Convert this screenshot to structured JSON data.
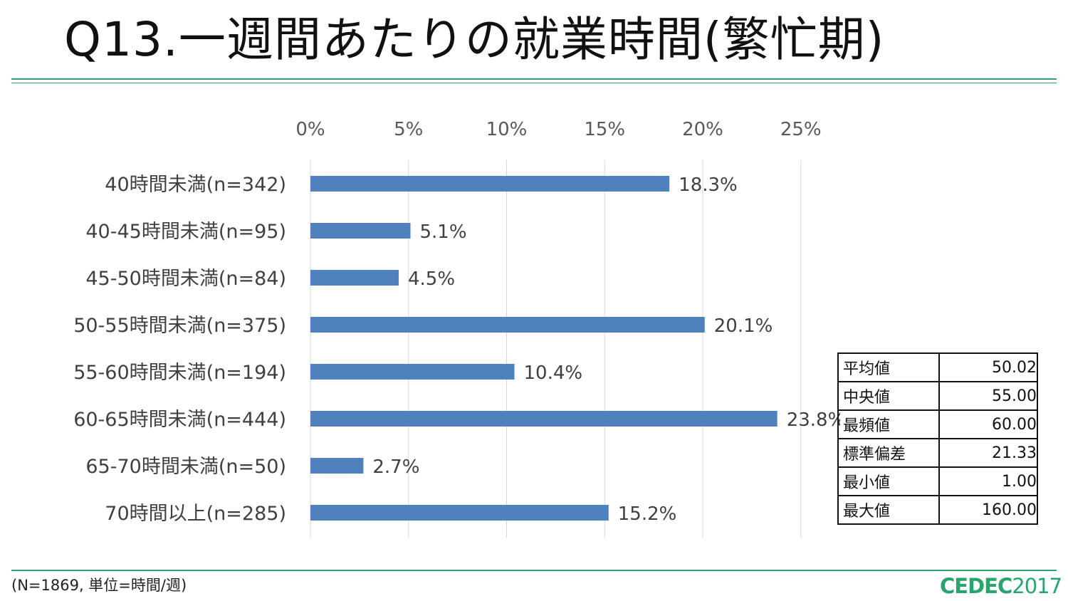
{
  "title": "Q13.一週間あたりの就業時間(繁忙期)",
  "footnote": "(N=1869, 単位=時間/週)",
  "logo": {
    "main": "CEDEC",
    "year": "2017"
  },
  "colors": {
    "bar": "#4f81bd",
    "accent": "#2aa46e",
    "grid": "#d9d9d9"
  },
  "chart_data": {
    "type": "bar",
    "orientation": "horizontal",
    "categories": [
      "40時間未満(n=342)",
      "40-45時間未満(n=95)",
      "45-50時間未満(n=84)",
      "50-55時間未満(n=375)",
      "55-60時間未満(n=194)",
      "60-65時間未満(n=444)",
      "65-70時間未満(n=50)",
      "70時間以上(n=285)"
    ],
    "values": [
      18.3,
      5.1,
      4.5,
      20.1,
      10.4,
      23.8,
      2.7,
      15.2
    ],
    "value_labels": [
      "18.3%",
      "5.1%",
      "4.5%",
      "20.1%",
      "10.4%",
      "23.8%",
      "2.7%",
      "15.2%"
    ],
    "xlim": [
      0,
      25
    ],
    "x_ticks": [
      0,
      5,
      10,
      15,
      20,
      25
    ],
    "x_tick_labels": [
      "0%",
      "5%",
      "10%",
      "15%",
      "20%",
      "25%"
    ],
    "x_axis_position": "top",
    "grid": true
  },
  "stats": [
    {
      "label": "平均値",
      "value": "50.02"
    },
    {
      "label": "中央値",
      "value": "55.00"
    },
    {
      "label": "最頻値",
      "value": "60.00"
    },
    {
      "label": "標準偏差",
      "value": "21.33"
    },
    {
      "label": "最小値",
      "value": "1.00"
    },
    {
      "label": "最大値",
      "value": "160.00"
    }
  ]
}
